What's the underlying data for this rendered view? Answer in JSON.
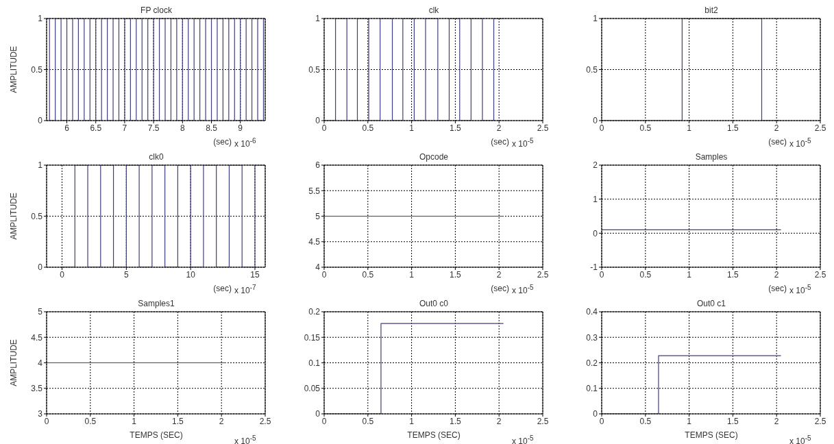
{
  "chart_data": [
    {
      "type": "step",
      "title": "FP clock",
      "xlabel": "(sec)",
      "ylabel": "AMPLITUDE",
      "annotations": [
        "x 10$^{-6}$"
      ],
      "color": "#3f3f7f",
      "grid": true,
      "xlim": [
        5.65,
        9.43
      ],
      "xticks": [
        6,
        6.5,
        7,
        7.5,
        8,
        8.5,
        9
      ],
      "ylim": [
        0,
        1
      ],
      "yticks": [
        0,
        0.5,
        1
      ],
      "x": [
        5.65,
        5.7,
        5.8,
        5.9,
        6,
        6.1,
        6.2,
        6.3,
        6.4,
        6.5,
        6.6,
        6.7,
        6.8,
        6.9,
        7,
        7.1,
        7.2,
        7.3,
        7.4,
        7.5,
        7.6,
        7.7,
        7.8,
        7.9,
        8,
        8.1,
        8.2,
        8.3,
        8.4,
        8.5,
        8.6,
        8.7,
        8.8,
        8.9,
        9,
        9.1,
        9.2,
        9.3,
        9.4,
        9.43
      ],
      "values": [
        1,
        0,
        1,
        0,
        1,
        0,
        1,
        0,
        1,
        0,
        1,
        0,
        1,
        0,
        1,
        0,
        1,
        0,
        1,
        0,
        1,
        0,
        1,
        0,
        1,
        0,
        1,
        0,
        1,
        0,
        1,
        0,
        1,
        0,
        1,
        0,
        1,
        0,
        1,
        1
      ]
    },
    {
      "type": "step",
      "title": "clk",
      "xlabel": "(sec)",
      "annotations": [
        "x 10$^{-5}$"
      ],
      "color": "#3f3f7f",
      "grid": true,
      "xlim": [
        0,
        2.5
      ],
      "xticks": [
        0,
        0.5,
        1,
        1.5,
        2,
        2.5
      ],
      "ylim": [
        0,
        1
      ],
      "yticks": [
        0,
        0.5,
        1
      ],
      "x": [
        0,
        0.13,
        0.26,
        0.38,
        0.51,
        0.64,
        0.78,
        0.9,
        1.03,
        1.16,
        1.3,
        1.43,
        1.55,
        1.68,
        1.81,
        1.94,
        2.05
      ],
      "values": [
        0,
        1,
        0,
        1,
        0,
        1,
        0,
        1,
        0,
        1,
        0,
        1,
        0,
        1,
        0,
        1,
        1
      ]
    },
    {
      "type": "step",
      "title": "bit2",
      "xlabel": "(sec)",
      "annotations": [
        "x 10$^{-5}$"
      ],
      "color": "#3f3f7f",
      "grid": true,
      "xlim": [
        0,
        2.5
      ],
      "xticks": [
        0,
        0.5,
        1,
        1.5,
        2,
        2.5
      ],
      "ylim": [
        0,
        1
      ],
      "yticks": [
        0,
        0.5,
        1
      ],
      "x": [
        0,
        0.92,
        1.83,
        2.05
      ],
      "values": [
        0,
        1,
        0,
        0
      ]
    },
    {
      "type": "step",
      "title": "clk0",
      "xlabel": "(sec)",
      "ylabel": "AMPLITUDE",
      "annotations": [
        "x 10$^{-7}$"
      ],
      "color": "#3f3f7f",
      "grid": true,
      "xlim": [
        -1.2,
        15.8
      ],
      "xticks": [
        0,
        5,
        10,
        15
      ],
      "ylim": [
        0,
        1
      ],
      "yticks": [
        0,
        0.5,
        1
      ],
      "x": [
        0,
        1,
        2,
        3,
        4,
        5,
        6,
        7,
        8,
        9,
        10,
        11,
        12,
        13,
        14,
        15,
        15.8
      ],
      "values": [
        0,
        1,
        0,
        1,
        0,
        1,
        0,
        1,
        0,
        1,
        0,
        1,
        0,
        1,
        0,
        1,
        1
      ]
    },
    {
      "type": "step",
      "title": "Opcode",
      "xlabel": "(sec)",
      "annotations": [
        "x 10$^{-5}$"
      ],
      "color": "#3f3f7f",
      "grid": true,
      "xlim": [
        0,
        2.5
      ],
      "xticks": [
        0,
        0.5,
        1,
        1.5,
        2,
        2.5
      ],
      "ylim": [
        4,
        6
      ],
      "yticks": [
        4,
        4.5,
        5,
        5.5,
        6
      ],
      "x": [
        0,
        2.05
      ],
      "values": [
        5,
        5
      ]
    },
    {
      "type": "step",
      "title": "Samples",
      "xlabel": "(sec)",
      "annotations": [
        "x 10$^{-5}$"
      ],
      "color": "#3f3f7f",
      "grid": true,
      "xlim": [
        0,
        2.5
      ],
      "xticks": [
        0,
        0.5,
        1,
        1.5,
        2,
        2.5
      ],
      "ylim": [
        -1,
        2
      ],
      "yticks": [
        -1,
        0,
        1,
        2
      ],
      "x": [
        0,
        2.05
      ],
      "values": [
        0.1,
        0.1
      ]
    },
    {
      "type": "step",
      "title": "Samples1",
      "xlabel": "TEMPS (SEC)",
      "ylabel": "AMPLITUDE",
      "annotations": [
        "x 10$^{-5}$"
      ],
      "color": "#3f3f7f",
      "grid": true,
      "xlim": [
        0,
        2.5
      ],
      "xticks": [
        0,
        0.5,
        1,
        1.5,
        2,
        2.5
      ],
      "ylim": [
        3,
        5
      ],
      "yticks": [
        3,
        3.5,
        4,
        4.5,
        5
      ],
      "x": [
        0,
        2.05
      ],
      "values": [
        4,
        4
      ]
    },
    {
      "type": "step",
      "title": "Out0 c0",
      "xlabel": "TEMPS (SEC)",
      "annotations": [
        "x 10$^{-5}$"
      ],
      "color": "#3f3f7f",
      "grid": true,
      "xlim": [
        0,
        2.5
      ],
      "xticks": [
        0,
        0.5,
        1,
        1.5,
        2,
        2.5
      ],
      "ylim": [
        0,
        0.2
      ],
      "yticks": [
        0,
        0.05,
        0.1,
        0.15,
        0.2
      ],
      "x": [
        0,
        0.65,
        2.05
      ],
      "values": [
        0,
        0.177,
        0.177
      ]
    },
    {
      "type": "step",
      "title": "Out0 c1",
      "xlabel": "TEMPS (SEC)",
      "annotations": [
        "x 10$^{-5}$"
      ],
      "color": "#3f3f7f",
      "grid": true,
      "xlim": [
        0,
        2.5
      ],
      "xticks": [
        0,
        0.5,
        1,
        1.5,
        2,
        2.5
      ],
      "ylim": [
        0,
        0.4
      ],
      "yticks": [
        0,
        0.1,
        0.2,
        0.3,
        0.4
      ],
      "x": [
        0,
        0.65,
        2.05
      ],
      "values": [
        0,
        0.228,
        0.228
      ]
    }
  ]
}
